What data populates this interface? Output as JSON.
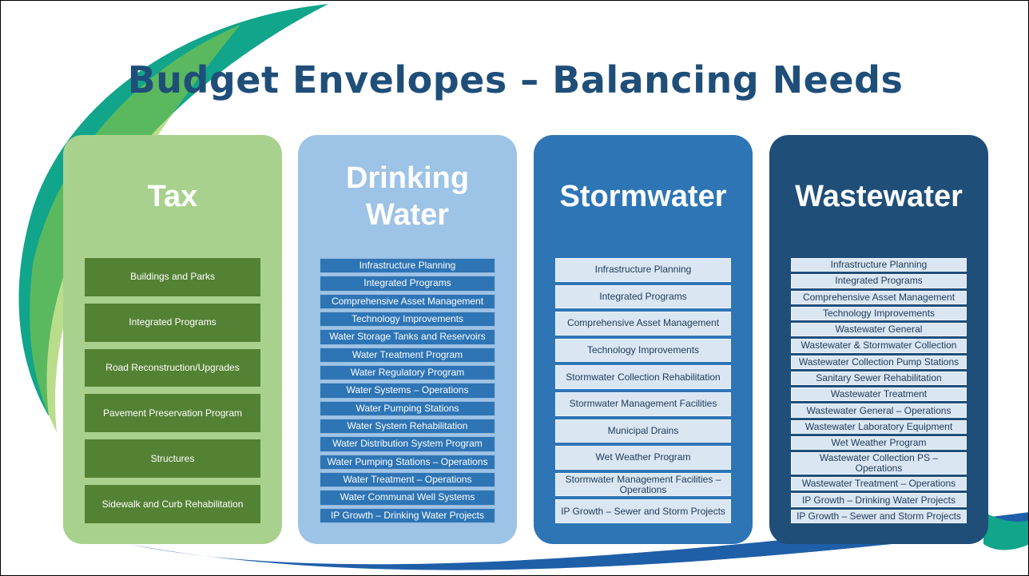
{
  "title": "Budget Envelopes – Balancing Needs",
  "columns": [
    {
      "heading": "Tax",
      "items": [
        "Buildings and Parks",
        "Integrated Programs",
        "Road Reconstruction/Upgrades",
        "Pavement Preservation Program",
        "Structures",
        "Sidewalk and Curb Rehabilitation"
      ]
    },
    {
      "heading": "Drinking Water",
      "items": [
        "Infrastructure Planning",
        "Integrated Programs",
        "Comprehensive Asset Management",
        "Technology Improvements",
        "Water Storage Tanks and Reservoirs",
        "Water Treatment Program",
        "Water Regulatory Program",
        "Water Systems – Operations",
        "Water Pumping Stations",
        "Water System Rehabilitation",
        "Water Distribution System Program",
        "Water Pumping Stations – Operations",
        "Water Treatment – Operations",
        "Water Communal Well Systems",
        "IP Growth – Drinking Water Projects"
      ]
    },
    {
      "heading": "Stormwater",
      "items": [
        "Infrastructure Planning",
        "Integrated Programs",
        "Comprehensive Asset Management",
        "Technology Improvements",
        "Stormwater Collection Rehabilitation",
        "Stormwater Management Facilities",
        "Municipal Drains",
        "Wet Weather Program",
        "Stormwater Management Facilities – Operations",
        "IP Growth – Sewer and Storm Projects"
      ]
    },
    {
      "heading": "Wastewater",
      "items": [
        "Infrastructure Planning",
        "Integrated Programs",
        "Comprehensive Asset Management",
        "Technology Improvements",
        "Wastewater General",
        "Wastewater & Stormwater Collection",
        "Wastewater Collection Pump Stations",
        "Sanitary Sewer Rehabilitation",
        "Wastewater Treatment",
        "Wastewater General – Operations",
        "Wastewater Laboratory Equipment",
        "Wet Weather Program",
        "Wastewater Collection PS – Operations",
        "Wastewater Treatment – Operations",
        "IP Growth – Drinking Water Projects",
        "IP Growth – Sewer and Storm Projects"
      ]
    }
  ]
}
